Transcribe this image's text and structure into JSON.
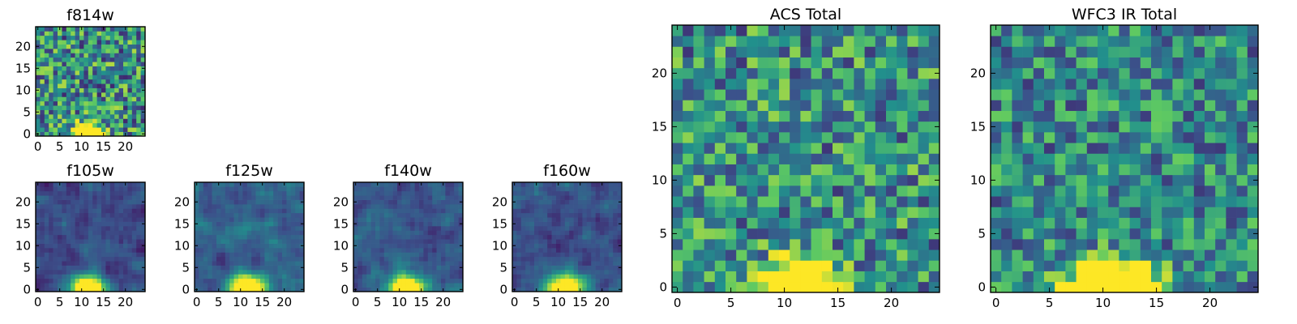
{
  "figure": {
    "description_free": true,
    "colormap": "viridis",
    "colormap_stops": [
      "#440154",
      "#3b528b",
      "#21918c",
      "#5ec962",
      "#fde725"
    ]
  },
  "chart_data": [
    {
      "type": "heatmap",
      "id": "f814w",
      "title": "f814w",
      "grid_size": 25,
      "xlim": [
        -0.5,
        24.5
      ],
      "ylim": [
        -0.5,
        24.5
      ],
      "xticks": [
        0,
        5,
        10,
        15,
        20
      ],
      "yticks": [
        0,
        5,
        10,
        15,
        20
      ],
      "texture": "noisy",
      "background_level": 0.5,
      "noise_amplitude": 0.38,
      "source": {
        "x": 11.5,
        "y": 0,
        "peak": 1.6,
        "sigma_x": 2.2,
        "sigma_y": 1.5
      }
    },
    {
      "type": "heatmap",
      "id": "f105w",
      "title": "f105w",
      "grid_size": 25,
      "xlim": [
        -0.5,
        24.5
      ],
      "ylim": [
        -0.5,
        24.5
      ],
      "xticks": [
        0,
        5,
        10,
        15,
        20
      ],
      "yticks": [
        0,
        5,
        10,
        15,
        20
      ],
      "texture": "smooth",
      "background_level": 0.22,
      "noise_amplitude": 0.12,
      "source": {
        "x": 11.5,
        "y": 0,
        "peak": 1.3,
        "sigma_x": 2.8,
        "sigma_y": 2.2
      }
    },
    {
      "type": "heatmap",
      "id": "f125w",
      "title": "f125w",
      "grid_size": 25,
      "xlim": [
        -0.5,
        24.5
      ],
      "ylim": [
        -0.5,
        24.5
      ],
      "xticks": [
        0,
        5,
        10,
        15,
        20
      ],
      "yticks": [
        0,
        5,
        10,
        15,
        20
      ],
      "texture": "smooth",
      "background_level": 0.3,
      "noise_amplitude": 0.13,
      "source": {
        "x": 11.5,
        "y": 0,
        "peak": 1.25,
        "sigma_x": 2.8,
        "sigma_y": 2.3
      }
    },
    {
      "type": "heatmap",
      "id": "f140w",
      "title": "f140w",
      "grid_size": 25,
      "xlim": [
        -0.5,
        24.5
      ],
      "ylim": [
        -0.5,
        24.5
      ],
      "xticks": [
        0,
        5,
        10,
        15,
        20
      ],
      "yticks": [
        0,
        5,
        10,
        15,
        20
      ],
      "texture": "smooth",
      "background_level": 0.27,
      "noise_amplitude": 0.13,
      "source": {
        "x": 11.5,
        "y": 0,
        "peak": 1.25,
        "sigma_x": 2.8,
        "sigma_y": 2.2
      }
    },
    {
      "type": "heatmap",
      "id": "f160w",
      "title": "f160w",
      "grid_size": 25,
      "xlim": [
        -0.5,
        24.5
      ],
      "ylim": [
        -0.5,
        24.5
      ],
      "xticks": [
        0,
        5,
        10,
        15,
        20
      ],
      "yticks": [
        0,
        5,
        10,
        15,
        20
      ],
      "texture": "smooth",
      "background_level": 0.25,
      "noise_amplitude": 0.13,
      "source": {
        "x": 11.5,
        "y": 0,
        "peak": 1.3,
        "sigma_x": 2.8,
        "sigma_y": 2.2
      }
    },
    {
      "type": "heatmap",
      "id": "acs-total",
      "title": "ACS Total",
      "grid_size": 25,
      "xlim": [
        -0.5,
        24.5
      ],
      "ylim": [
        -0.5,
        24.5
      ],
      "xticks": [
        0,
        5,
        10,
        15,
        20
      ],
      "yticks": [
        0,
        5,
        10,
        15,
        20
      ],
      "texture": "noisy",
      "background_level": 0.5,
      "noise_amplitude": 0.34,
      "source": {
        "x": 11.5,
        "y": 0,
        "peak": 1.6,
        "sigma_x": 2.2,
        "sigma_y": 1.6
      }
    },
    {
      "type": "heatmap",
      "id": "wfc3-ir-total",
      "title": "WFC3 IR Total",
      "grid_size": 25,
      "xlim": [
        -0.5,
        24.5
      ],
      "ylim": [
        -0.5,
        24.5
      ],
      "xticks": [
        0,
        5,
        10,
        15,
        20
      ],
      "yticks": [
        0,
        5,
        10,
        15,
        20
      ],
      "texture": "noisy",
      "background_level": 0.47,
      "noise_amplitude": 0.3,
      "source": {
        "x": 11.0,
        "y": 0,
        "peak": 1.6,
        "sigma_x": 2.6,
        "sigma_y": 1.7
      }
    }
  ]
}
